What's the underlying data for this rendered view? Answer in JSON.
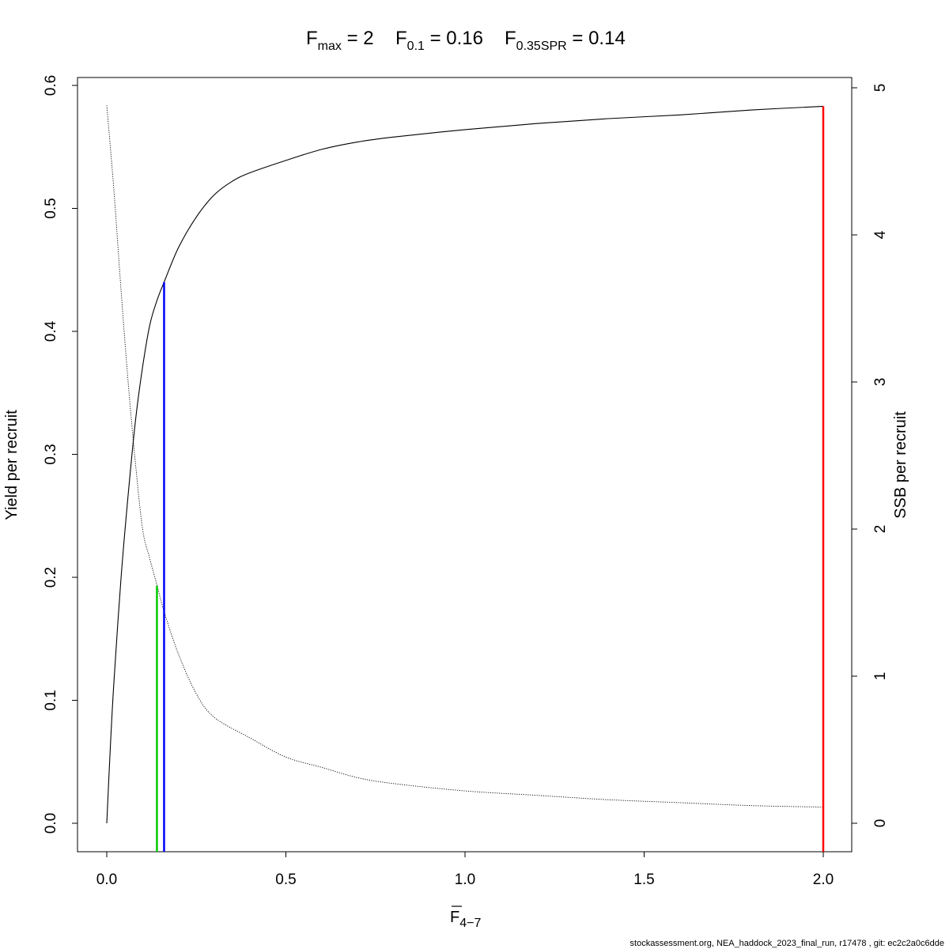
{
  "chart_data": {
    "type": "line",
    "title": {
      "fmax": {
        "base": "F",
        "sub": "max",
        "value": "2"
      },
      "f01": {
        "base": "F",
        "sub": "0.1",
        "value": "0.16"
      },
      "fspr": {
        "base": "F",
        "sub": "0.35SPR",
        "value": "0.14"
      }
    },
    "xlabel": {
      "base": "F",
      "sub": "4−7"
    },
    "ylabel_left": "Yield per recruit",
    "ylabel_right": "SSB per recruit",
    "xlim": [
      0,
      2
    ],
    "ylim_left": [
      0,
      0.6
    ],
    "ylim_right": [
      0,
      5
    ],
    "x_ticks": [
      "0.0",
      "0.5",
      "1.0",
      "1.5",
      "2.0"
    ],
    "y_left_ticks": [
      "0.0",
      "0.1",
      "0.2",
      "0.3",
      "0.4",
      "0.5",
      "0.6"
    ],
    "y_right_ticks": [
      "0",
      "1",
      "2",
      "3",
      "4",
      "5"
    ],
    "series": [
      {
        "name": "Yield per recruit",
        "axis": "left",
        "style": "solid",
        "x": [
          0,
          0.01,
          0.02,
          0.04,
          0.06,
          0.08,
          0.1,
          0.12,
          0.14,
          0.16,
          0.2,
          0.25,
          0.3,
          0.35,
          0.4,
          0.5,
          0.6,
          0.7,
          0.8,
          1.0,
          1.2,
          1.4,
          1.6,
          1.8,
          2.0
        ],
        "values": [
          0,
          0.062,
          0.115,
          0.2,
          0.268,
          0.327,
          0.371,
          0.405,
          0.425,
          0.44,
          0.468,
          0.493,
          0.511,
          0.522,
          0.529,
          0.539,
          0.548,
          0.554,
          0.558,
          0.564,
          0.569,
          0.573,
          0.576,
          0.58,
          0.583
        ]
      },
      {
        "name": "SSB per recruit",
        "axis": "right",
        "style": "dotted",
        "x": [
          0,
          0.02,
          0.04,
          0.06,
          0.08,
          0.1,
          0.12,
          0.14,
          0.16,
          0.2,
          0.25,
          0.3,
          0.4,
          0.5,
          0.6,
          0.7,
          0.8,
          1.0,
          1.2,
          1.4,
          1.6,
          1.8,
          2.0
        ],
        "values": [
          4.88,
          4.3,
          3.62,
          2.99,
          2.45,
          2.0,
          1.8,
          1.62,
          1.44,
          1.15,
          0.88,
          0.72,
          0.58,
          0.45,
          0.38,
          0.31,
          0.27,
          0.22,
          0.19,
          0.16,
          0.14,
          0.12,
          0.11
        ]
      }
    ],
    "reference_lines": [
      {
        "label": "F0.35SPR",
        "x": 0.14,
        "y_top": 0.193,
        "color": "#00cc00"
      },
      {
        "label": "F0.1",
        "x": 0.16,
        "y_top": 0.44,
        "color": "#0000ff"
      },
      {
        "label": "Fmax",
        "x": 2.0,
        "y_top": 0.583,
        "color": "#ff0000"
      }
    ]
  },
  "footer": "stockassessment.org, NEA_haddock_2023_final_run, r17478 , git: ec2c2a0c6dde"
}
